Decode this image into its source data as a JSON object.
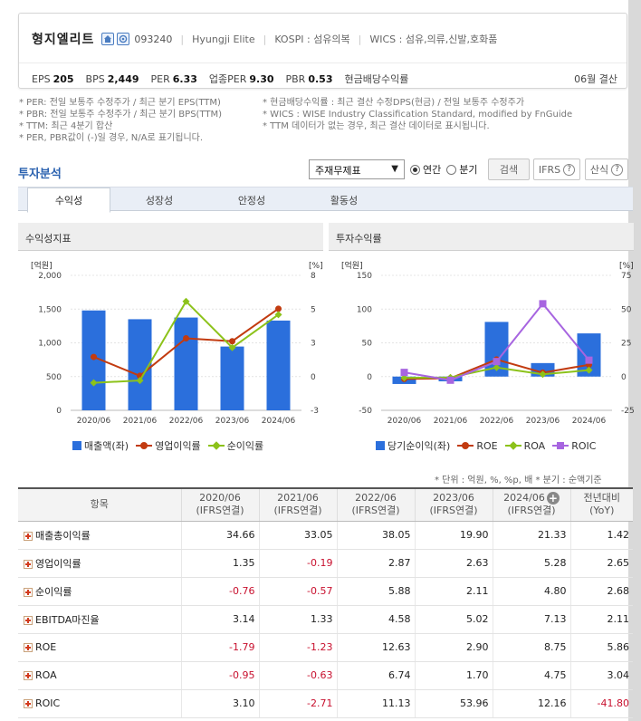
{
  "company": {
    "name": "형지엘리트",
    "code": "093240",
    "english_name": "Hyungji Elite",
    "market": "KOSPI : 섬유의복",
    "wics": "WICS : 섬유,의류,신발,호화품"
  },
  "metrics": [
    {
      "key": "EPS",
      "value": "205"
    },
    {
      "key": "BPS",
      "value": "2,449"
    },
    {
      "key": "PER",
      "value": "6.33"
    },
    {
      "key": "업종PER",
      "value": "9.30"
    },
    {
      "key": "PBR",
      "value": "0.53"
    }
  ],
  "dividend_label": "현금배당수익률",
  "settlement": "06월 결산",
  "notes_left": [
    "* PER: 전일 보통주 수정주가 / 최근 분기 EPS(TTM)",
    "* PBR: 전일 보통주 수정주가 / 최근 분기 BPS(TTM)",
    "* TTM: 최근 4분기 합산",
    "* PER, PBR값이 (-)일 경우, N/A로 표기됩니다."
  ],
  "notes_right": [
    "* 현금배당수익률 : 최근 결산 수정DPS(현금) / 전일 보통주 수정주가",
    "* WICS : WISE Industry Classification Standard, modified by FnGuide",
    "* TTM 데이터가 없는 경우, 최근 결산 데이터로 표시됩니다."
  ],
  "analysis": {
    "title": "투자분석",
    "select_value": "주재무제표",
    "radio_annual": "연간",
    "radio_quarter": "분기",
    "search_button": "검색",
    "ifrs_button": "IFRS",
    "formula_button": "산식"
  },
  "tabs": [
    "수익성",
    "성장성",
    "안정성",
    "활동성"
  ],
  "panels": {
    "left_title": "수익성지표",
    "right_title": "투자수익률"
  },
  "chart_data": [
    {
      "type": "bar",
      "title": "수익성지표",
      "categories": [
        "2020/06",
        "2021/06",
        "2022/06",
        "2023/06",
        "2024/06"
      ],
      "y_left_label": "[억원]",
      "y_right_label": "[%]",
      "ylim_left": [
        0,
        2000
      ],
      "yticks_left": [
        "0",
        "500",
        "1,000",
        "1,500",
        "2,000"
      ],
      "ylim_right": [
        -3,
        8
      ],
      "yticks_right": [
        "-3",
        "0",
        "3",
        "5",
        "8"
      ],
      "series": [
        {
          "name": "매출액(좌)",
          "type": "bar",
          "axis": "left",
          "color": "#2b6fdc",
          "values": [
            1480,
            1350,
            1375,
            945,
            1330
          ]
        },
        {
          "name": "영업이익률",
          "type": "line",
          "axis": "right",
          "color": "#c23b10",
          "values": [
            1.35,
            -0.19,
            2.87,
            2.63,
            5.28
          ]
        },
        {
          "name": "순이익률",
          "type": "line",
          "axis": "right",
          "color": "#8cc21a",
          "values": [
            -0.76,
            -0.57,
            5.88,
            2.11,
            4.8
          ]
        }
      ]
    },
    {
      "type": "bar",
      "title": "투자수익률",
      "categories": [
        "2020/06",
        "2021/06",
        "2022/06",
        "2023/06",
        "2024/06"
      ],
      "y_left_label": "[억원]",
      "y_right_label": "[%]",
      "ylim_left": [
        -50,
        150
      ],
      "yticks_left": [
        "-50",
        "0",
        "50",
        "100",
        "150"
      ],
      "ylim_right": [
        -25,
        75
      ],
      "yticks_right": [
        "-25",
        "0",
        "25",
        "50",
        "75"
      ],
      "series": [
        {
          "name": "당기순이익(좌)",
          "type": "bar",
          "axis": "left",
          "color": "#2b6fdc",
          "values": [
            -11,
            -7,
            81,
            20,
            64
          ]
        },
        {
          "name": "ROE",
          "type": "line",
          "axis": "right",
          "color": "#c23b10",
          "values": [
            -1.79,
            -1.23,
            12.63,
            2.9,
            8.75
          ]
        },
        {
          "name": "ROA",
          "type": "line",
          "axis": "right",
          "color": "#8cc21a",
          "values": [
            -0.95,
            -0.63,
            6.74,
            1.7,
            4.75
          ]
        },
        {
          "name": "ROIC",
          "type": "line",
          "axis": "right",
          "color": "#a765e0",
          "values": [
            3.1,
            -2.71,
            11.13,
            53.96,
            12.16
          ]
        }
      ]
    }
  ],
  "unit_note": "* 단위 : 억원, %, %p, 배       * 분기 : 순액기준",
  "table": {
    "header_item": "항목",
    "columns": [
      {
        "line1": "2020/06",
        "line2": "(IFRS연결)"
      },
      {
        "line1": "2021/06",
        "line2": "(IFRS연결)"
      },
      {
        "line1": "2022/06",
        "line2": "(IFRS연결)"
      },
      {
        "line1": "2023/06",
        "line2": "(IFRS연결)"
      },
      {
        "line1": "2024/06",
        "line2": "(IFRS연결)"
      },
      {
        "line1": "전년대비",
        "line2": "(YoY)"
      }
    ],
    "rows": [
      {
        "label": "매출총이익률",
        "values": [
          "34.66",
          "33.05",
          "38.05",
          "19.90",
          "21.33",
          "1.42"
        ]
      },
      {
        "label": "영업이익률",
        "values": [
          "1.35",
          "-0.19",
          "2.87",
          "2.63",
          "5.28",
          "2.65"
        ]
      },
      {
        "label": "순이익률",
        "values": [
          "-0.76",
          "-0.57",
          "5.88",
          "2.11",
          "4.80",
          "2.68"
        ]
      },
      {
        "label": "EBITDA마진율",
        "values": [
          "3.14",
          "1.33",
          "4.58",
          "5.02",
          "7.13",
          "2.11"
        ]
      },
      {
        "label": "ROE",
        "values": [
          "-1.79",
          "-1.23",
          "12.63",
          "2.90",
          "8.75",
          "5.86"
        ]
      },
      {
        "label": "ROA",
        "values": [
          "-0.95",
          "-0.63",
          "6.74",
          "1.70",
          "4.75",
          "3.04"
        ]
      },
      {
        "label": "ROIC",
        "values": [
          "3.10",
          "-2.71",
          "11.13",
          "53.96",
          "12.16",
          "-41.80"
        ]
      }
    ]
  }
}
